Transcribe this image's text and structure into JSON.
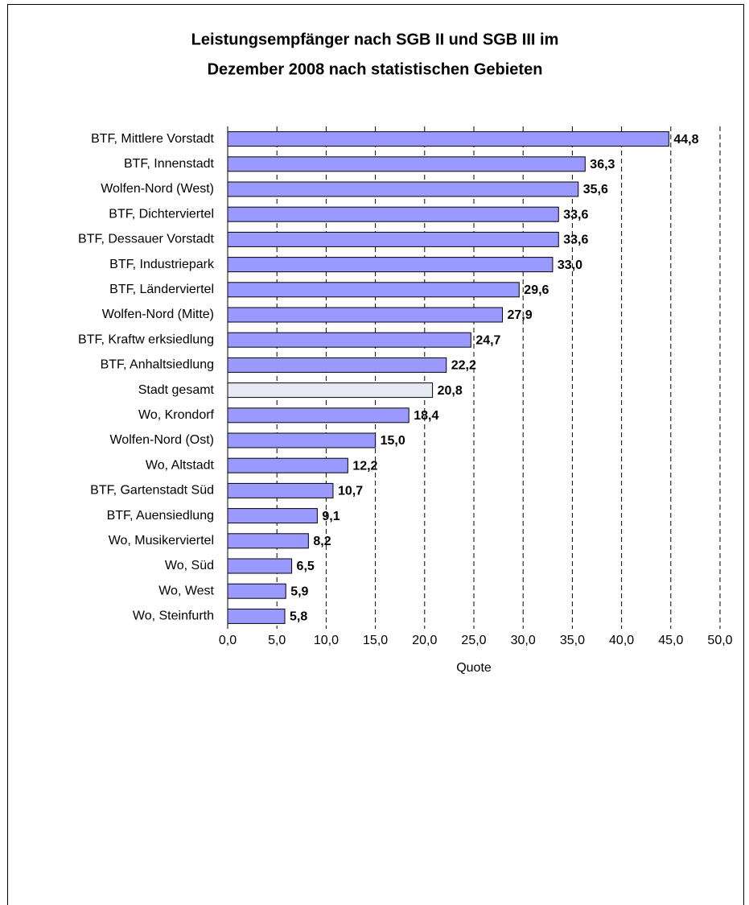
{
  "chart_data": {
    "type": "barh",
    "title": [
      "Leistungsempfänger nach SGB II und SGB III im",
      "Dezember 2008 nach statistischen Gebieten"
    ],
    "x_label": "Quote",
    "categories": [
      "BTF, Mittlere Vorstadt",
      "BTF, Innenstadt",
      "Wolfen-Nord (West)",
      "BTF, Dichterviertel",
      "BTF, Dessauer Vorstadt",
      "BTF, Industriepark",
      "BTF, Länderviertel",
      "Wolfen-Nord (Mitte)",
      "BTF, Kraftw erksiedlung",
      "BTF, Anhaltsiedlung",
      "Stadt gesamt",
      "Wo, Krondorf",
      "Wolfen-Nord (Ost)",
      "Wo, Altstadt",
      "BTF, Gartenstadt Süd",
      "BTF, Auensiedlung",
      "Wo, Musikerviertel",
      "Wo, Süd",
      "Wo, West",
      "Wo, Steinfurth"
    ],
    "values": [
      44.8,
      36.3,
      35.6,
      33.6,
      33.6,
      33.0,
      29.6,
      27.9,
      24.7,
      22.2,
      20.8,
      18.4,
      15.0,
      12.2,
      10.7,
      9.1,
      8.2,
      6.5,
      5.9,
      5.8
    ],
    "value_labels": [
      "44,8",
      "36,3",
      "35,6",
      "33,6",
      "33,6",
      "33,0",
      "29,6",
      "27,9",
      "24,7",
      "22,2",
      "20,8",
      "18,4",
      "15,0",
      "12,2",
      "10,7",
      "9,1",
      "8,2",
      "6,5",
      "5,9",
      "5,8"
    ],
    "colors": [
      "#9999ff",
      "#9999ff",
      "#9999ff",
      "#9999ff",
      "#9999ff",
      "#9999ff",
      "#9999ff",
      "#9999ff",
      "#9999ff",
      "#9999ff",
      "#e6e8f4",
      "#9999ff",
      "#9999ff",
      "#9999ff",
      "#9999ff",
      "#9999ff",
      "#9999ff",
      "#9999ff",
      "#9999ff",
      "#9999ff"
    ],
    "xlim": [
      0,
      50
    ],
    "xticks": [
      {
        "value": 0,
        "label": "0,0"
      },
      {
        "value": 5,
        "label": "5,0"
      },
      {
        "value": 10,
        "label": "10,0"
      },
      {
        "value": 15,
        "label": "15,0"
      },
      {
        "value": 20,
        "label": "20,0"
      },
      {
        "value": 25,
        "label": "25,0"
      },
      {
        "value": 30,
        "label": "30,0"
      },
      {
        "value": 35,
        "label": "35,0"
      },
      {
        "value": 40,
        "label": "40,0"
      },
      {
        "value": 45,
        "label": "45,0"
      },
      {
        "value": 50,
        "label": "50,0"
      }
    ],
    "grid": true
  }
}
